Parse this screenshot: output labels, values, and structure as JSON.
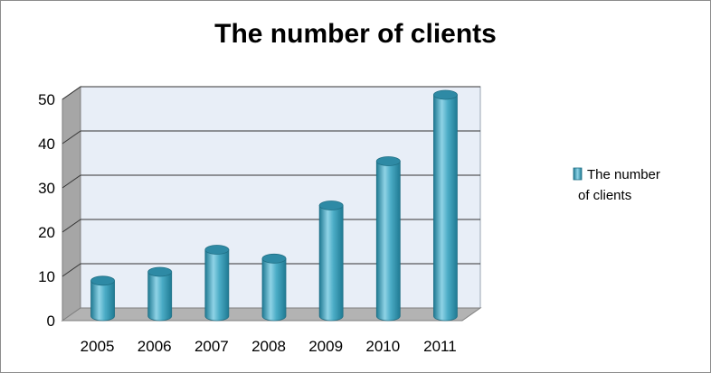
{
  "chart_data": {
    "type": "bar",
    "title": "The number of clients",
    "categories": [
      "2005",
      "2006",
      "2007",
      "2008",
      "2009",
      "2010",
      "2011"
    ],
    "series": [
      {
        "name": "The number of clients",
        "values": [
          8,
          10,
          15,
          13,
          25,
          35,
          50
        ]
      }
    ],
    "yticks": [
      "0",
      "10",
      "20",
      "30",
      "40",
      "50"
    ],
    "ylim": [
      0,
      50
    ],
    "grid": true,
    "legend_position": "right",
    "legend_lines": [
      "The number",
      "of clients"
    ],
    "bar_shape": "cylinder-3d",
    "colors": {
      "bar_front": "#4bacc6",
      "bar_light": "#8fd3e6",
      "bar_dark": "#1f7a93",
      "bar_top": "#2e8aa5",
      "back_wall": "#e8eef7",
      "side_wall": "#a6a6a6",
      "floor": "#b3b3b3",
      "grid": "#333333"
    }
  }
}
